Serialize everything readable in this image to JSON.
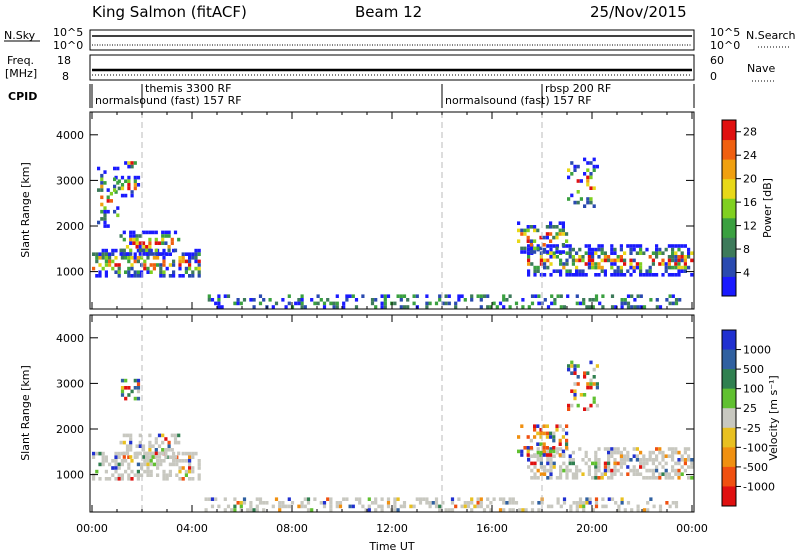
{
  "header": {
    "station": "King Salmon (fitACF)",
    "beam": "Beam 12",
    "date": "25/Nov/2015"
  },
  "panels": {
    "nsky": {
      "left_label": "N.Sky",
      "right_label": "N.Search",
      "left_ticks": [
        "10^5",
        "10^0"
      ],
      "right_ticks": [
        "10^5",
        "10^0"
      ]
    },
    "freq": {
      "left_label_1": "Freq.",
      "left_label_2": "[MHz]",
      "right_label": "Nave",
      "left_ticks": [
        "18",
        "8"
      ],
      "right_ticks": [
        "60",
        "0"
      ]
    },
    "cpid": {
      "label": "CPID",
      "segments": [
        {
          "name": "normalsound (fast) 157 RF",
          "start": 0.0,
          "end": 14.0,
          "level": 1
        },
        {
          "name": "themis 3300 RF",
          "start": 2.0,
          "end": 14.0,
          "level": 0
        },
        {
          "name": "normalsound (fast) 157 RF",
          "start": 14.0,
          "end": 24.0,
          "level": 1
        },
        {
          "name": "rbsp 200 RF",
          "start": 18.0,
          "end": 24.0,
          "level": 0
        }
      ]
    }
  },
  "colors": {
    "power_scale": [
      "#1a1aff",
      "#2a4ab0",
      "#3d7a5a",
      "#3aa040",
      "#80d020",
      "#e8d818",
      "#f0a010",
      "#f06010",
      "#e01010"
    ],
    "velocity_scale": [
      "#2030d0",
      "#3060a0",
      "#308050",
      "#60c030",
      "#c8c8c0",
      "#e8c020",
      "#f09010",
      "#f05010",
      "#e01010"
    ],
    "ground": "#c0c0b8"
  },
  "chart_data": [
    {
      "type": "heatmap",
      "panel": "power",
      "xlabel": "",
      "ylabel": "Slant Range [km]",
      "xlim": [
        0,
        24
      ],
      "ylim": [
        180,
        4500
      ],
      "yticks": [
        "1000",
        "2000",
        "3000",
        "4000"
      ],
      "colorbar": {
        "label": "Power [dB]",
        "ticks": [
          "4",
          "8",
          "12",
          "16",
          "20",
          "24",
          "28"
        ],
        "range": [
          0,
          30
        ]
      },
      "regions": [
        {
          "t0": 0.0,
          "t1": 4.3,
          "r0": 900,
          "r1": 1500,
          "level": 0.55
        },
        {
          "t0": 1.1,
          "t1": 3.5,
          "r0": 1400,
          "r1": 1900,
          "level": 0.5
        },
        {
          "t0": 0.9,
          "t1": 1.8,
          "r0": 2700,
          "r1": 3100,
          "level": 0.45
        },
        {
          "t0": 0.9,
          "t1": 1.7,
          "r0": 3300,
          "r1": 3500,
          "level": 0.35
        },
        {
          "t0": 0.2,
          "t1": 1.0,
          "r0": 2000,
          "r1": 3300,
          "level": 0.25
        },
        {
          "t0": 17.4,
          "t1": 24.0,
          "r0": 950,
          "r1": 1600,
          "level": 0.55
        },
        {
          "t0": 17.0,
          "t1": 19.0,
          "r0": 1400,
          "r1": 2100,
          "level": 0.35
        },
        {
          "t0": 19.0,
          "t1": 20.2,
          "r0": 2400,
          "r1": 3500,
          "level": 0.3
        },
        {
          "t0": 4.5,
          "t1": 23.5,
          "r0": 200,
          "r1": 500,
          "level": 0.35
        }
      ]
    },
    {
      "type": "heatmap",
      "panel": "velocity",
      "xlabel": "Time UT",
      "ylabel": "Slant Range [km]",
      "xlim": [
        0,
        24
      ],
      "ylim": [
        180,
        4500
      ],
      "yticks": [
        "1000",
        "2000",
        "3000",
        "4000"
      ],
      "xticks": [
        "00:00",
        "04:00",
        "08:00",
        "12:00",
        "16:00",
        "20:00",
        "00:00"
      ],
      "colorbar": {
        "label": "Velocity [m s⁻¹]",
        "ticks": [
          "1000",
          "500",
          "100",
          "25",
          "-25",
          "-100",
          "-500",
          "-1000"
        ]
      },
      "regions": [
        {
          "t0": 0.0,
          "t1": 4.3,
          "r0": 900,
          "r1": 1500,
          "level": 0.5
        },
        {
          "t0": 1.1,
          "t1": 3.5,
          "r0": 1400,
          "r1": 1900,
          "level": 0.5
        },
        {
          "t0": 0.9,
          "t1": 1.8,
          "r0": 2700,
          "r1": 3100,
          "level": 0.45
        },
        {
          "t0": 17.4,
          "t1": 24.0,
          "r0": 950,
          "r1": 1600,
          "level": 0.5
        },
        {
          "t0": 17.0,
          "t1": 19.0,
          "r0": 1400,
          "r1": 2100,
          "level": 0.4
        },
        {
          "t0": 19.0,
          "t1": 20.2,
          "r0": 2400,
          "r1": 3500,
          "level": 0.3
        },
        {
          "t0": 4.5,
          "t1": 23.5,
          "r0": 200,
          "r1": 500,
          "level": 0.35
        }
      ],
      "markers_ut": [
        2.0,
        14.0,
        18.0
      ]
    }
  ]
}
